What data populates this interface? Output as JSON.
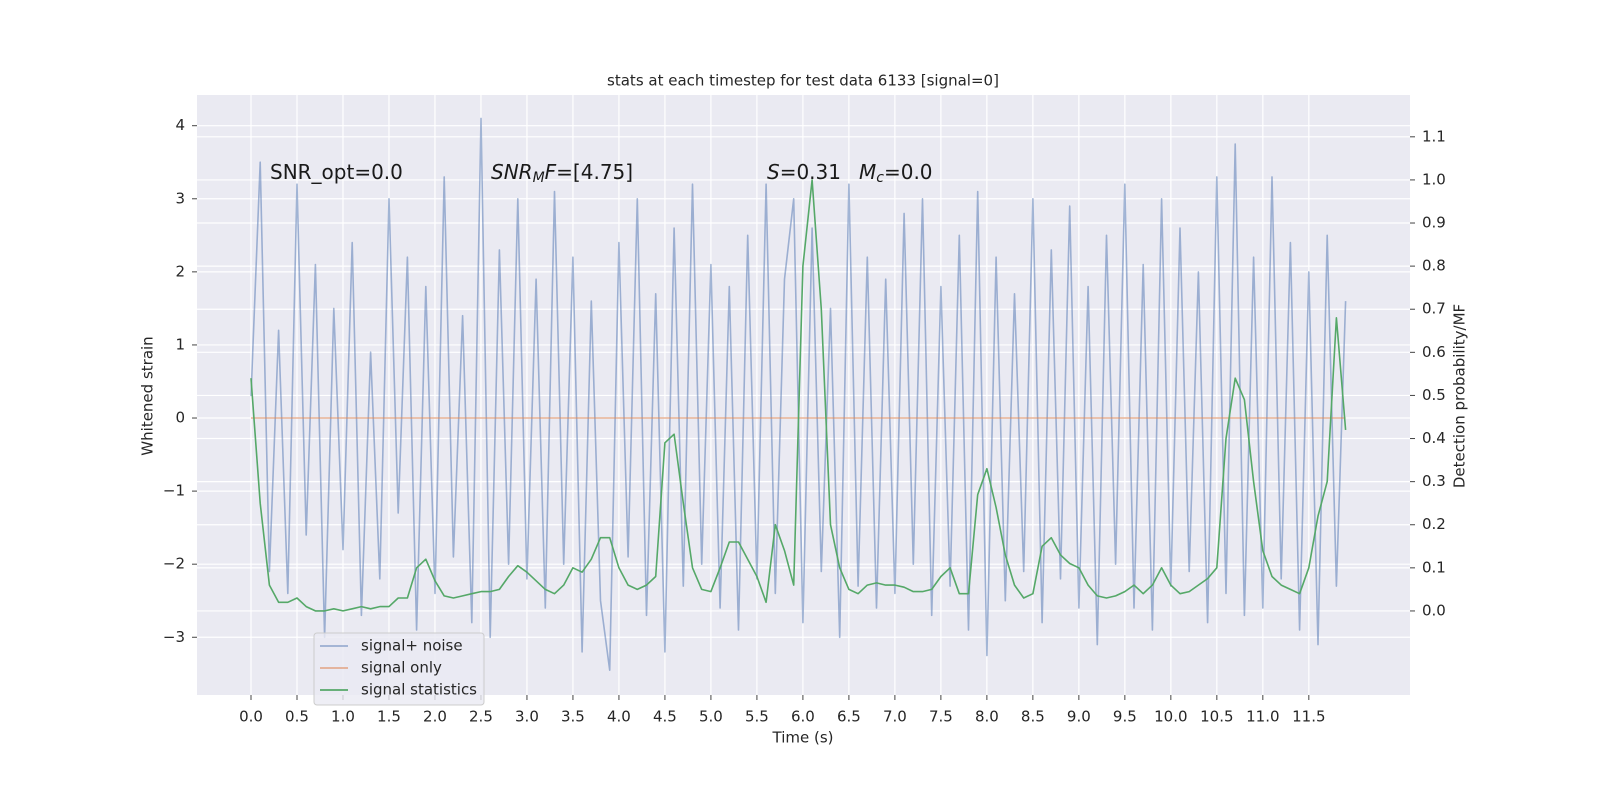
{
  "chart_data": {
    "type": "line",
    "title": "stats at each timestep for test data 6133 [signal=0]",
    "xlabel": "Time (s)",
    "ylabel": "Whitened strain",
    "y2label": "Detection probability/MF",
    "annotations": [
      [
        {
          "t": "SNR_opt=0.0",
          "style": "normal"
        }
      ],
      [
        {
          "t": "SNR",
          "style": "italic"
        },
        {
          "t": "M",
          "style": "sub"
        },
        {
          "t": "F",
          "style": "italic"
        },
        {
          "t": "=[4.75]",
          "style": "normal"
        }
      ],
      [
        {
          "t": "S",
          "style": "italic"
        },
        {
          "t": "=0.31",
          "style": "normal"
        }
      ],
      [
        {
          "t": "M",
          "style": "italic"
        },
        {
          "t": "c",
          "style": "sub"
        },
        {
          "t": "=0.0",
          "style": "normal"
        }
      ]
    ],
    "xlim": [
      -0.587,
      12.6
    ],
    "ylim": [
      -3.79,
      4.42
    ],
    "y2lim": [
      -0.195,
      1.197
    ],
    "xticks": [
      {
        "value": 0,
        "label": "0.0"
      },
      0.5,
      {
        "value": 1,
        "label": "1.0"
      },
      1.5,
      {
        "value": 2,
        "label": "2.0"
      },
      2.5,
      {
        "value": 3,
        "label": "3.0"
      },
      3.5,
      {
        "value": 4,
        "label": "4.0"
      },
      4.5,
      {
        "value": 5,
        "label": "5.0"
      },
      5.5,
      {
        "value": 6,
        "label": "6.0"
      },
      6.5,
      {
        "value": 7,
        "label": "7.0"
      },
      7.5,
      {
        "value": 8,
        "label": "8.0"
      },
      8.5,
      {
        "value": 9,
        "label": "9.0"
      },
      9.5,
      {
        "value": 10,
        "label": "10.0"
      },
      10.5,
      {
        "value": 11,
        "label": "11.0"
      },
      11.5
    ],
    "yticks": [
      {
        "value": -3,
        "label": "−3"
      },
      {
        "value": -2,
        "label": "−2"
      },
      {
        "value": -1,
        "label": "−1"
      },
      0,
      1,
      2,
      3,
      4
    ],
    "y2ticks": [
      {
        "value": 0,
        "label": "0.0"
      },
      0.1,
      0.2,
      0.3,
      0.4,
      0.5,
      0.6,
      0.7,
      0.8,
      0.9,
      {
        "value": 1,
        "label": "1.0"
      },
      1.1
    ],
    "grid": true,
    "legend": "lower left",
    "x": [
      0.0,
      0.1,
      0.2,
      0.3,
      0.4,
      0.5,
      0.6,
      0.7,
      0.8,
      0.9,
      1.0,
      1.1,
      1.2,
      1.3,
      1.4,
      1.5,
      1.6,
      1.7,
      1.8,
      1.9,
      2.0,
      2.1,
      2.2,
      2.3,
      2.4,
      2.5,
      2.6,
      2.7,
      2.8,
      2.9,
      3.0,
      3.1,
      3.2,
      3.3,
      3.4,
      3.5,
      3.6,
      3.7,
      3.8,
      3.9,
      4.0,
      4.1,
      4.2,
      4.3,
      4.4,
      4.5,
      4.6,
      4.7,
      4.8,
      4.9,
      5.0,
      5.1,
      5.2,
      5.3,
      5.4,
      5.5,
      5.6,
      5.7,
      5.8,
      5.9,
      6.0,
      6.1,
      6.2,
      6.3,
      6.4,
      6.5,
      6.6,
      6.7,
      6.8,
      6.9,
      7.0,
      7.1,
      7.2,
      7.3,
      7.4,
      7.5,
      7.6,
      7.7,
      7.8,
      7.9,
      8.0,
      8.1,
      8.2,
      8.3,
      8.4,
      8.5,
      8.6,
      8.7,
      8.8,
      8.9,
      9.0,
      9.1,
      9.2,
      9.3,
      9.4,
      9.5,
      9.6,
      9.7,
      9.8,
      9.9,
      10.0,
      10.1,
      10.2,
      10.3,
      10.4,
      10.5,
      10.6,
      10.7,
      10.8,
      10.9,
      11.0,
      11.1,
      11.2,
      11.3,
      11.4,
      11.5,
      11.6,
      11.7,
      11.8,
      11.9
    ],
    "series": [
      {
        "name": "signal+ noise",
        "color": "#4c72b0",
        "opacity": 0.5,
        "values": [
          0.3,
          3.5,
          -2.1,
          1.2,
          -2.4,
          3.2,
          -1.6,
          2.1,
          -3.0,
          1.5,
          -1.8,
          2.4,
          -2.7,
          0.9,
          -2.2,
          3.0,
          -1.3,
          2.2,
          -2.9,
          1.8,
          -2.4,
          3.3,
          -1.9,
          1.4,
          -2.8,
          4.1,
          -3.0,
          2.3,
          -2.0,
          3.0,
          -2.2,
          1.9,
          -2.6,
          3.1,
          -2.0,
          2.2,
          -3.2,
          1.6,
          -2.5,
          -3.45,
          2.4,
          -1.9,
          3.0,
          -2.7,
          1.7,
          -3.2,
          2.6,
          -2.3,
          3.2,
          -2.0,
          2.1,
          -2.6,
          1.8,
          -2.9,
          2.5,
          -2.2,
          3.2,
          -2.4,
          1.9,
          3.0,
          -2.8,
          2.6,
          -2.1,
          1.5,
          -3.0,
          3.2,
          -2.3,
          2.2,
          -2.6,
          1.9,
          -2.4,
          2.8,
          -2.0,
          3.0,
          -2.7,
          1.8,
          -2.3,
          2.5,
          -2.9,
          3.1,
          -3.25,
          2.2,
          -2.5,
          1.7,
          -2.1,
          3.0,
          -2.8,
          2.3,
          -2.2,
          2.9,
          -2.6,
          1.8,
          -3.1,
          2.5,
          -2.0,
          3.2,
          -2.6,
          2.1,
          -2.9,
          3.0,
          -2.3,
          2.6,
          -2.1,
          2.0,
          -2.8,
          3.3,
          -2.4,
          3.75,
          -2.7,
          2.2,
          -2.6,
          3.3,
          -2.2,
          2.4,
          -2.9,
          2.0,
          -3.1,
          2.5,
          -2.3,
          1.6
        ]
      },
      {
        "name": "signal only",
        "color": "#dd8452",
        "opacity": 0.6,
        "values": [
          0,
          0,
          0,
          0,
          0,
          0,
          0,
          0,
          0,
          0,
          0,
          0,
          0,
          0,
          0,
          0,
          0,
          0,
          0,
          0,
          0,
          0,
          0,
          0,
          0,
          0,
          0,
          0,
          0,
          0,
          0,
          0,
          0,
          0,
          0,
          0,
          0,
          0,
          0,
          0,
          0,
          0,
          0,
          0,
          0,
          0,
          0,
          0,
          0,
          0,
          0,
          0,
          0,
          0,
          0,
          0,
          0,
          0,
          0,
          0,
          0,
          0,
          0,
          0,
          0,
          0,
          0,
          0,
          0,
          0,
          0,
          0,
          0,
          0,
          0,
          0,
          0,
          0,
          0,
          0,
          0,
          0,
          0,
          0,
          0,
          0,
          0,
          0,
          0,
          0,
          0,
          0,
          0,
          0,
          0,
          0,
          0,
          0,
          0,
          0,
          0,
          0,
          0,
          0,
          0,
          0,
          0,
          0,
          0,
          0,
          0,
          0,
          0,
          0,
          0,
          0,
          0,
          0,
          0,
          0
        ]
      },
      {
        "name": "signal statistics",
        "color": "#55a868",
        "opacity": 1,
        "axis": "y2",
        "values": [
          0.54,
          0.25,
          0.06,
          0.02,
          0.02,
          0.03,
          0.01,
          0.0,
          0.0,
          0.005,
          0.0,
          0.005,
          0.01,
          0.005,
          0.01,
          0.01,
          0.03,
          0.03,
          0.1,
          0.12,
          0.07,
          0.035,
          0.03,
          0.035,
          0.04,
          0.045,
          0.045,
          0.05,
          0.08,
          0.105,
          0.09,
          0.07,
          0.05,
          0.04,
          0.06,
          0.1,
          0.09,
          0.12,
          0.17,
          0.17,
          0.1,
          0.06,
          0.05,
          0.06,
          0.08,
          0.39,
          0.41,
          0.25,
          0.1,
          0.05,
          0.045,
          0.1,
          0.16,
          0.16,
          0.12,
          0.08,
          0.02,
          0.2,
          0.14,
          0.06,
          0.8,
          1.0,
          0.7,
          0.2,
          0.1,
          0.05,
          0.04,
          0.06,
          0.065,
          0.06,
          0.06,
          0.055,
          0.045,
          0.045,
          0.05,
          0.08,
          0.1,
          0.04,
          0.04,
          0.27,
          0.33,
          0.24,
          0.13,
          0.06,
          0.03,
          0.04,
          0.15,
          0.17,
          0.13,
          0.11,
          0.1,
          0.06,
          0.035,
          0.03,
          0.035,
          0.045,
          0.06,
          0.04,
          0.06,
          0.1,
          0.06,
          0.04,
          0.045,
          0.06,
          0.075,
          0.1,
          0.4,
          0.54,
          0.49,
          0.3,
          0.14,
          0.08,
          0.06,
          0.05,
          0.04,
          0.1,
          0.22,
          0.3,
          0.68,
          0.42
        ]
      }
    ]
  }
}
